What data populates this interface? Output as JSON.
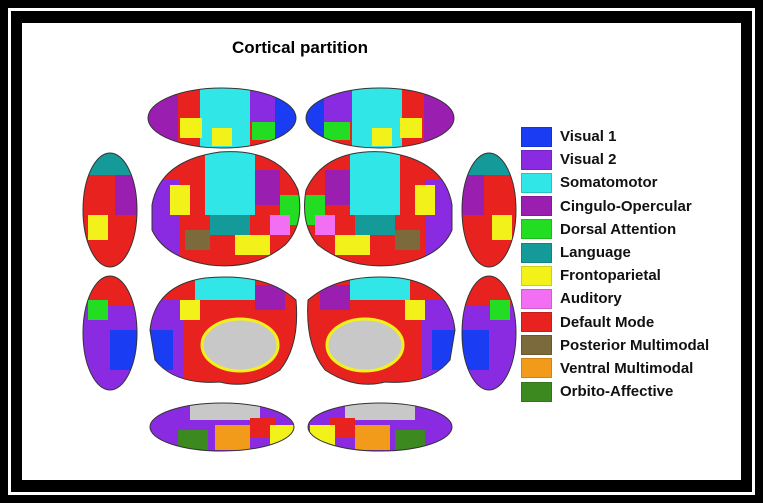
{
  "title": "Cortical partition",
  "colors": {
    "visual1": "#1a3cf2",
    "visual2": "#8a2be2",
    "somatomotor": "#31e6e6",
    "cingulo_opercular": "#9a1fb0",
    "dorsal_attention": "#22dd22",
    "language": "#159a9a",
    "frontoparietal": "#f2f21a",
    "auditory": "#f26ef2",
    "default_mode": "#e8231f",
    "posterior_multimodal": "#7a6a3c",
    "ventral_multimodal": "#f29a1a",
    "orbito_affective": "#3c8a1f",
    "medial_wall": "#c8c8c8"
  },
  "legend": [
    {
      "label": "Visual 1",
      "color": "#1a3cf2"
    },
    {
      "label": "Visual 2",
      "color": "#8a2be2"
    },
    {
      "label": "Somatomotor",
      "color": "#31e6e6"
    },
    {
      "label": "Cingulo-Opercular",
      "color": "#9a1fb0"
    },
    {
      "label": "Dorsal Attention",
      "color": "#22dd22"
    },
    {
      "label": "Language",
      "color": "#159a9a"
    },
    {
      "label": "Frontoparietal",
      "color": "#f2f21a"
    },
    {
      "label": "Auditory",
      "color": "#f26ef2"
    },
    {
      "label": "Default Mode",
      "color": "#e8231f"
    },
    {
      "label": "Posterior Multimodal",
      "color": "#7a6a3c"
    },
    {
      "label": "Ventral Multimodal",
      "color": "#f29a1a"
    },
    {
      "label": "Orbito-Affective",
      "color": "#3c8a1f"
    }
  ]
}
